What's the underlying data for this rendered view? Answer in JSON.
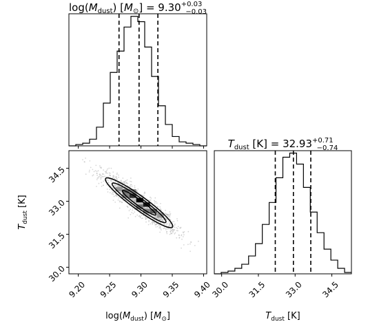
{
  "chart_data": [
    {
      "type": "histogram",
      "panel": "top-left",
      "title": "log(M_dust) [M_sun] = 9.30 +0.03 -0.03",
      "title_parts": {
        "lhs": "log(",
        "var": "M",
        "var_sub": "dust",
        "rhs": ") [",
        "unit": "M",
        "unit_sub": "⊙",
        "close": "] = 9.30",
        "sup": "+0.03",
        "sub": "−0.03"
      },
      "xlim": [
        9.185,
        9.405
      ],
      "xticks": [
        9.2,
        9.25,
        9.3,
        9.35,
        9.4
      ],
      "bin_edges": [
        9.185,
        9.196,
        9.207,
        9.218,
        9.229,
        9.24,
        9.251,
        9.262,
        9.273,
        9.284,
        9.295,
        9.306,
        9.317,
        9.328,
        9.339,
        9.35,
        9.361,
        9.372,
        9.383,
        9.394,
        9.405
      ],
      "counts": [
        0,
        1,
        2,
        5,
        14,
        32,
        55,
        71,
        89,
        97,
        93,
        74,
        52,
        30,
        16,
        7,
        3,
        2,
        1,
        0
      ],
      "quantiles": [
        9.265,
        9.297,
        9.327
      ]
    },
    {
      "type": "histogram",
      "panel": "bottom-right",
      "title": "T_dust [K] = 32.93 +0.71 -0.74",
      "title_parts": {
        "var": "T",
        "var_sub": "dust",
        "rhs": " [K] = 32.93",
        "sup": "+0.71",
        "sub": "−0.74"
      },
      "xlim": [
        29.7,
        35.3
      ],
      "xticks": [
        30.0,
        31.5,
        33.0,
        34.5
      ],
      "xticklabels": [
        "30.0",
        "31.5",
        "33.0",
        "34.5"
      ],
      "xlabel_parts": {
        "var": "T",
        "var_sub": "dust",
        "rest": " [K]"
      },
      "bin_edges": [
        29.7,
        29.98,
        30.26,
        30.54,
        30.82,
        31.1,
        31.38,
        31.66,
        31.94,
        32.22,
        32.5,
        32.78,
        33.06,
        33.34,
        33.62,
        33.9,
        34.18,
        34.46,
        34.74,
        35.02,
        35.3
      ],
      "counts": [
        0,
        1,
        2,
        4,
        7,
        13,
        22,
        36,
        52,
        70,
        85,
        88,
        80,
        63,
        45,
        30,
        18,
        10,
        4,
        1
      ],
      "quantiles": [
        32.19,
        32.93,
        33.64
      ]
    },
    {
      "type": "heatmap",
      "panel": "bottom-left",
      "xlim": [
        9.185,
        9.405
      ],
      "ylim": [
        29.7,
        35.3
      ],
      "xticks": [
        9.2,
        9.25,
        9.3,
        9.35,
        9.4
      ],
      "xticklabels": [
        "9.20",
        "9.25",
        "9.30",
        "9.35",
        "9.40"
      ],
      "yticks": [
        30.0,
        31.5,
        33.0,
        34.5
      ],
      "yticklabels": [
        "30.0",
        "31.5",
        "33.0",
        "34.5"
      ],
      "xlabel_parts": {
        "lhs": "log(",
        "var": "M",
        "var_sub": "dust",
        "rhs": ") [",
        "unit": "M",
        "unit_sub": "⊙",
        "close": "]"
      },
      "ylabel_parts": {
        "var": "T",
        "var_sub": "dust",
        "rest": " [K]"
      },
      "correlation": "negative",
      "center": [
        9.297,
        32.93
      ],
      "density_cells": [
        {
          "x": 9.265,
          "y": 33.55,
          "level": 0.35
        },
        {
          "x": 9.276,
          "y": 33.45,
          "level": 0.55
        },
        {
          "x": 9.287,
          "y": 33.25,
          "level": 0.8
        },
        {
          "x": 9.298,
          "y": 33.05,
          "level": 1.0
        },
        {
          "x": 9.309,
          "y": 32.85,
          "level": 0.9
        },
        {
          "x": 9.32,
          "y": 32.55,
          "level": 0.6
        },
        {
          "x": 9.331,
          "y": 32.35,
          "level": 0.35
        },
        {
          "x": 9.276,
          "y": 33.25,
          "level": 0.45
        },
        {
          "x": 9.309,
          "y": 32.55,
          "level": 0.45
        },
        {
          "x": 9.287,
          "y": 33.45,
          "level": 0.4
        },
        {
          "x": 9.298,
          "y": 32.75,
          "level": 0.5
        }
      ]
    }
  ]
}
